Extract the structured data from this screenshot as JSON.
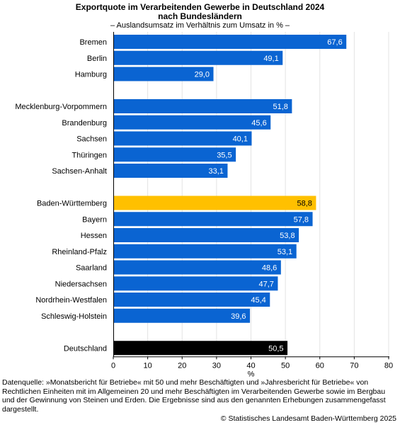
{
  "title_line1": "Exportquote im Verarbeitenden Gewerbe in Deutschland 2024",
  "title_line2": "nach Bundesländern",
  "subtitle": "– Auslandsumsatz im Verhältnis zum Umsatz in % –",
  "footnote": "Datenquelle: »Monatsbericht für Betriebe« mit 50 und mehr Beschäftigten und »Jahresbericht für Betriebe« von Rechtlichen Einheiten mit im Allgemeinen 20 und mehr Beschäftigten im Verarbeitenden Gewerbe sowie im Bergbau und der Gewinnung von Steinen und Erden. Die Ergebnisse sind aus den genannten Erhebungen zusammengefasst dargestellt.",
  "copyright": "© Statistisches Landesamt Baden-Württemberg 2025",
  "colors": {
    "default": "#0a64d2",
    "highlight": "#ffc000",
    "total": "#000000",
    "axis": "#000000",
    "grid": "#e3e3e3"
  },
  "chart_data": {
    "type": "bar",
    "orientation": "horizontal",
    "title": "Exportquote im Verarbeitenden Gewerbe in Deutschland 2024 nach Bundesländern",
    "subtitle": "– Auslandsumsatz im Verhältnis zum Umsatz in % –",
    "xlabel": "%",
    "ylabel": "",
    "xlim": [
      0,
      80
    ],
    "xticks": [
      0,
      10,
      20,
      30,
      40,
      50,
      60,
      70,
      80
    ],
    "grid": true,
    "value_format": "decimal comma, one decimal",
    "groups": [
      {
        "bars": [
          {
            "label": "Bremen",
            "value": 67.6,
            "display": "67,6"
          },
          {
            "label": "Berlin",
            "value": 49.1,
            "display": "49,1"
          },
          {
            "label": "Hamburg",
            "value": 29.0,
            "display": "29,0"
          }
        ]
      },
      {
        "bars": [
          {
            "label": "Mecklenburg-Vorpommern",
            "value": 51.8,
            "display": "51,8"
          },
          {
            "label": "Brandenburg",
            "value": 45.6,
            "display": "45,6"
          },
          {
            "label": "Sachsen",
            "value": 40.1,
            "display": "40,1"
          },
          {
            "label": "Thüringen",
            "value": 35.5,
            "display": "35,5"
          },
          {
            "label": "Sachsen-Anhalt",
            "value": 33.1,
            "display": "33,1"
          }
        ]
      },
      {
        "bars": [
          {
            "label": "Baden-Württemberg",
            "value": 58.8,
            "display": "58,8",
            "highlight": "highlight"
          },
          {
            "label": "Bayern",
            "value": 57.8,
            "display": "57,8"
          },
          {
            "label": "Hessen",
            "value": 53.8,
            "display": "53,8"
          },
          {
            "label": "Rheinland-Pfalz",
            "value": 53.1,
            "display": "53,1"
          },
          {
            "label": "Saarland",
            "value": 48.6,
            "display": "48,6"
          },
          {
            "label": "Niedersachsen",
            "value": 47.7,
            "display": "47,7"
          },
          {
            "label": "Nordrhein-Westfalen",
            "value": 45.4,
            "display": "45,4"
          },
          {
            "label": "Schleswig-Holstein",
            "value": 39.6,
            "display": "39,6"
          }
        ]
      },
      {
        "bars": [
          {
            "label": "Deutschland",
            "value": 50.5,
            "display": "50,5",
            "highlight": "total"
          }
        ]
      }
    ]
  }
}
